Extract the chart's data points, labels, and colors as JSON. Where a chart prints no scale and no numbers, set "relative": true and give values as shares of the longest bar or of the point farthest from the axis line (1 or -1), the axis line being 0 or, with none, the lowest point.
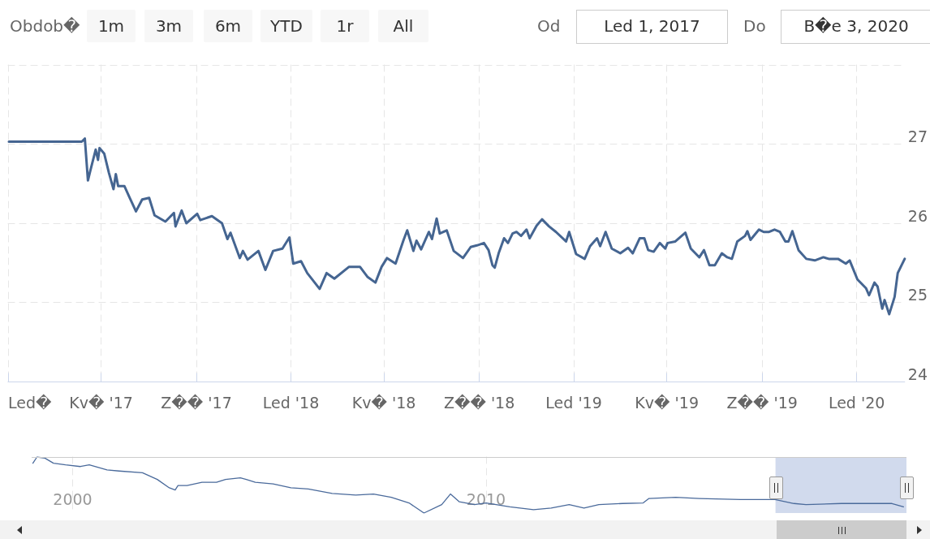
{
  "chart_data": [
    {
      "type": "line",
      "annotations": [
        "Obdob�",
        "1m",
        "3m",
        "6m",
        "YTD",
        "1r",
        "All",
        "Od",
        "Led 1, 2017",
        "Do",
        "B�e 3, 2020"
      ],
      "series": [
        {
          "color": "#456591",
          "x": [
            "2017-01-02",
            "2017-04-06",
            "2017-04-10",
            "2017-04-14",
            "2017-04-17",
            "2017-04-24",
            "2017-04-27",
            "2017-04-29",
            "2017-05-05",
            "2017-05-11",
            "2017-05-17",
            "2017-05-20",
            "2017-05-23",
            "2017-05-31",
            "2017-06-07",
            "2017-06-15",
            "2017-06-23",
            "2017-07-02",
            "2017-07-09",
            "2017-07-23",
            "2017-08-03",
            "2017-08-05",
            "2017-08-13",
            "2017-08-19",
            "2017-09-02",
            "2017-09-06",
            "2017-09-21",
            "2017-10-04",
            "2017-10-11",
            "2017-10-15",
            "2017-10-27",
            "2017-10-31",
            "2017-11-06",
            "2017-11-20",
            "2017-11-29",
            "2017-12-09",
            "2017-12-21",
            "2017-12-30",
            "2018-01-04",
            "2018-01-14",
            "2018-01-22",
            "2018-02-07",
            "2018-02-16",
            "2018-02-26",
            "2018-03-17",
            "2018-03-31",
            "2018-04-10",
            "2018-04-20",
            "2018-04-28",
            "2018-05-05",
            "2018-05-16",
            "2018-05-26",
            "2018-05-31",
            "2018-06-08",
            "2018-06-12",
            "2018-06-18",
            "2018-06-28",
            "2018-07-02",
            "2018-07-08",
            "2018-07-12",
            "2018-07-21",
            "2018-07-30",
            "2018-08-11",
            "2018-08-21",
            "2018-08-29",
            "2018-09-07",
            "2018-09-13",
            "2018-09-18",
            "2018-09-21",
            "2018-09-26",
            "2018-10-03",
            "2018-10-08",
            "2018-10-14",
            "2018-10-19",
            "2018-10-25",
            "2018-11-01",
            "2018-11-05",
            "2018-11-14",
            "2018-11-21",
            "2018-11-30",
            "2018-12-09",
            "2018-12-22",
            "2018-12-26",
            "2019-01-04",
            "2019-01-15",
            "2019-01-22",
            "2019-01-31",
            "2019-02-04",
            "2019-02-11",
            "2019-02-19",
            "2019-03-02",
            "2019-03-12",
            "2019-03-18",
            "2019-03-27",
            "2019-04-02",
            "2019-04-07",
            "2019-04-14",
            "2019-04-22",
            "2019-04-29",
            "2019-05-02",
            "2019-05-12",
            "2019-05-25",
            "2019-06-01",
            "2019-06-12",
            "2019-06-18",
            "2019-06-25",
            "2019-07-02",
            "2019-07-11",
            "2019-07-18",
            "2019-07-24",
            "2019-07-31",
            "2019-08-10",
            "2019-08-13",
            "2019-08-17",
            "2019-08-28",
            "2019-09-03",
            "2019-09-10",
            "2019-09-17",
            "2019-09-24",
            "2019-10-01",
            "2019-10-05",
            "2019-10-10",
            "2019-10-18",
            "2019-10-28",
            "2019-11-08",
            "2019-11-19",
            "2019-11-26",
            "2019-12-08",
            "2019-12-18",
            "2019-12-23",
            "2020-01-02",
            "2020-01-13",
            "2020-01-17",
            "2020-01-24",
            "2020-01-28",
            "2020-02-03",
            "2020-02-06",
            "2020-02-12",
            "2020-02-19",
            "2020-02-23",
            "2020-03-03"
          ],
          "values": [
            27.03,
            27.03,
            27.07,
            26.54,
            26.66,
            26.93,
            26.8,
            26.95,
            26.88,
            26.64,
            26.43,
            26.62,
            26.47,
            26.47,
            26.32,
            26.15,
            26.3,
            26.32,
            26.1,
            26.02,
            26.13,
            25.96,
            26.16,
            26.0,
            26.12,
            26.04,
            26.09,
            26.0,
            25.8,
            25.88,
            25.56,
            25.65,
            25.54,
            25.65,
            25.41,
            25.65,
            25.68,
            25.82,
            25.49,
            25.52,
            25.37,
            25.17,
            25.37,
            25.3,
            25.45,
            25.45,
            25.32,
            25.25,
            25.45,
            25.56,
            25.49,
            25.78,
            25.91,
            25.65,
            25.78,
            25.67,
            25.89,
            25.8,
            26.06,
            25.87,
            25.91,
            25.65,
            25.56,
            25.7,
            25.72,
            25.75,
            25.66,
            25.47,
            25.44,
            25.62,
            25.81,
            25.75,
            25.87,
            25.89,
            25.84,
            25.92,
            25.81,
            25.97,
            26.05,
            25.96,
            25.89,
            25.77,
            25.89,
            25.61,
            25.55,
            25.71,
            25.81,
            25.71,
            25.89,
            25.68,
            25.62,
            25.69,
            25.62,
            25.81,
            25.81,
            25.66,
            25.64,
            25.75,
            25.68,
            25.75,
            25.77,
            25.88,
            25.68,
            25.57,
            25.66,
            25.47,
            25.47,
            25.62,
            25.57,
            25.55,
            25.77,
            25.84,
            25.9,
            25.79,
            25.92,
            25.89,
            25.89,
            25.92,
            25.89,
            25.77,
            25.77,
            25.9,
            25.66,
            25.55,
            25.53,
            25.57,
            25.55,
            25.55,
            25.49,
            25.53,
            25.29,
            25.18,
            25.09,
            25.25,
            25.2,
            24.92,
            25.03,
            24.85,
            25.07,
            25.37,
            25.55
          ]
        }
      ],
      "xlim": [
        "2017-01-01",
        "2020-03-03"
      ],
      "xticks": [
        {
          "value": "2017-01-01",
          "label": "Led�"
        },
        {
          "value": "2017-05-01",
          "label": "Kv� '17"
        },
        {
          "value": "2017-09-01",
          "label": "Z�� '17"
        },
        {
          "value": "2018-01-01",
          "label": "Led '18"
        },
        {
          "value": "2018-05-01",
          "label": "Kv� '18"
        },
        {
          "value": "2018-09-01",
          "label": "Z�� '18"
        },
        {
          "value": "2019-01-01",
          "label": "Led '19"
        },
        {
          "value": "2019-05-01",
          "label": "Kv� '19"
        },
        {
          "value": "2019-09-01",
          "label": "Z�� '19"
        },
        {
          "value": "2020-01-01",
          "label": "Led '20"
        }
      ],
      "ylim": [
        24,
        28
      ],
      "yticks": [
        24,
        25,
        26,
        27,
        {
          "value": 28,
          "label": null
        }
      ],
      "grid": true,
      "marker": "none"
    },
    {
      "type": "line",
      "relative": true,
      "series": [
        {
          "color": "#4a6a9b",
          "x": [
            "1999-01-15",
            "1999-02-20",
            "1999-05-01",
            "1999-07-16",
            "1999-10-30",
            "2000-03-10",
            "2000-05-27",
            "2000-10-31",
            "2001-02-14",
            "2001-09-09",
            "2002-01-18",
            "2002-05-04",
            "2002-06-25",
            "2002-07-20",
            "2002-10-08",
            "2003-02-17",
            "2003-06-25",
            "2003-09-13",
            "2004-01-22",
            "2004-03-14",
            "2004-06-02",
            "2004-11-06",
            "2005-04-12",
            "2005-09-13",
            "2006-04-12",
            "2006-11-06",
            "2007-04-12",
            "2007-09-16",
            "2008-02-20",
            "2008-07-01",
            "2008-12-05",
            "2009-02-20",
            "2009-05-10",
            "2009-09-20",
            "2010-01-01",
            "2010-07-30",
            "2011-02-24",
            "2011-07-30",
            "2012-01-05",
            "2012-05-15",
            "2012-09-23",
            "2013-04-20",
            "2013-10-20",
            "2013-12-10",
            "2014-08-03",
            "2015-02-28",
            "2016-02-28",
            "2016-12-28",
            "2017-06-13",
            "2017-09-27",
            "2018-08-07",
            "2019-06-18",
            "2019-10-27",
            "2020-02-06"
          ],
          "values": [
            0.89,
            1.0,
            0.98,
            0.89,
            0.86,
            0.83,
            0.86,
            0.77,
            0.75,
            0.72,
            0.6,
            0.45,
            0.41,
            0.49,
            0.49,
            0.55,
            0.55,
            0.6,
            0.63,
            0.6,
            0.55,
            0.52,
            0.45,
            0.43,
            0.35,
            0.32,
            0.34,
            0.28,
            0.18,
            0.0,
            0.15,
            0.34,
            0.2,
            0.15,
            0.18,
            0.11,
            0.06,
            0.09,
            0.15,
            0.09,
            0.15,
            0.17,
            0.18,
            0.26,
            0.28,
            0.26,
            0.24,
            0.24,
            0.17,
            0.15,
            0.17,
            0.17,
            0.17,
            0.11
          ]
        }
      ],
      "xlim": [
        "1999-01-04",
        "2020-03-03"
      ],
      "xticks": [
        {
          "value": "2000-01-01",
          "label": "2000"
        },
        {
          "value": "2010-01-01",
          "label": "2010"
        }
      ],
      "grid": "x",
      "marker": "none",
      "bands": [
        {
          "axis": "x",
          "from": "2017-01-01",
          "to": "2020-03-03",
          "color": "#c9d4ea"
        }
      ]
    }
  ]
}
